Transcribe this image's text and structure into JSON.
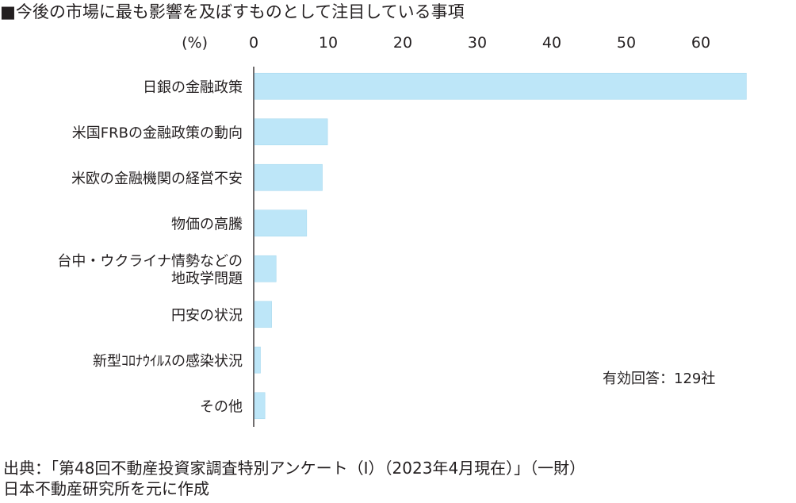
{
  "title": "■今後の市場に最も影響を及ぼすものとして注目している事項",
  "source": [
    "出典：「第48回不動産投資家調査特別アンケート（I）（2023年4月現在）」（一財）",
    "日本不動産研究所を元に作成"
  ],
  "colors": {
    "bar": "#bde6f8",
    "bar_stroke": "#a9d9ef",
    "axis": "#231f20",
    "text": "#231f20"
  },
  "chart_data": {
    "type": "bar",
    "orientation": "horizontal",
    "unit_label": "(%)",
    "xlim": [
      0,
      66
    ],
    "ticks": [
      0,
      10,
      20,
      30,
      40,
      50,
      60
    ],
    "grid": false,
    "categories": [
      [
        "日銀の金融政策"
      ],
      [
        "米国FRBの金融政策の動向"
      ],
      [
        "米欧の金融機関の経営不安"
      ],
      [
        "物価の高騰"
      ],
      [
        "台中・ウクライナ情勢などの",
        "地政学問題"
      ],
      [
        "円安の状況"
      ],
      [
        "新型ｺﾛﾅｳｲﾙｽの感染状況"
      ],
      [
        "その他"
      ]
    ],
    "values": [
      66.0,
      9.8,
      9.1,
      7.0,
      2.9,
      2.3,
      0.8,
      1.4
    ],
    "annotation": "有効回答：129社"
  }
}
